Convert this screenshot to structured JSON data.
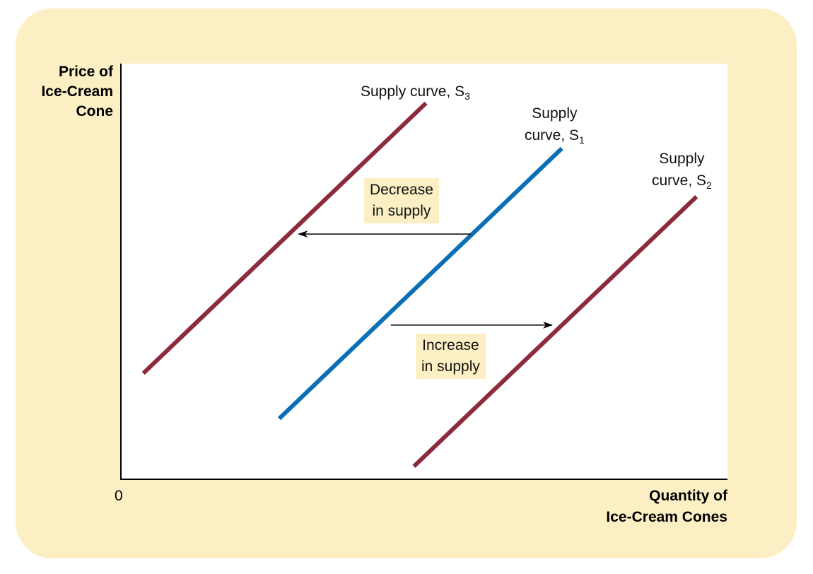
{
  "chart_data": {
    "type": "line",
    "xlabel": [
      "Quantity of",
      "Ice-Cream Cones"
    ],
    "ylabel": [
      "Price of",
      "Ice-Cream",
      "Cone"
    ],
    "origin_label": "0",
    "xlim": [
      0,
      100
    ],
    "ylim": [
      0,
      100
    ],
    "grid": false,
    "series": [
      {
        "name": "Supply curve, S3",
        "id": "s3",
        "color": "#8b2b3b",
        "x": [
          3.7,
          50.3
        ],
        "y": [
          25.5,
          90.5
        ]
      },
      {
        "name": "Supply curve, S1",
        "id": "s1",
        "color": "#0a6fb5",
        "x": [
          26.1,
          72.7
        ],
        "y": [
          14.6,
          79.6
        ]
      },
      {
        "name": "Supply curve, S2",
        "id": "s2",
        "color": "#8b2b3b",
        "x": [
          48.3,
          94.9
        ],
        "y": [
          3.1,
          68.0
        ]
      }
    ],
    "arrows": [
      {
        "id": "decrease",
        "from": [
          57.7,
          59.0
        ],
        "to": [
          29.3,
          59.0
        ]
      },
      {
        "id": "increase",
        "from": [
          44.5,
          37.1
        ],
        "to": [
          71.1,
          37.1
        ]
      }
    ],
    "annotations": [
      {
        "id": "s3-label",
        "lines": [
          "Supply curve, S",
          "3"
        ]
      },
      {
        "id": "s1-label",
        "lines": [
          "Supply",
          "curve, S",
          "1"
        ]
      },
      {
        "id": "s2-label",
        "lines": [
          "Supply",
          "curve, S",
          "2"
        ]
      },
      {
        "id": "decrease-label",
        "lines": [
          "Decrease",
          "in supply"
        ]
      },
      {
        "id": "increase-label",
        "lines": [
          "Increase",
          "in supply"
        ]
      }
    ]
  },
  "colors": {
    "panel_bg": "#fcefc4",
    "plot_bg": "#ffffff",
    "curve_shifted": "#8b2b3b",
    "curve_original": "#0a6fb5"
  }
}
